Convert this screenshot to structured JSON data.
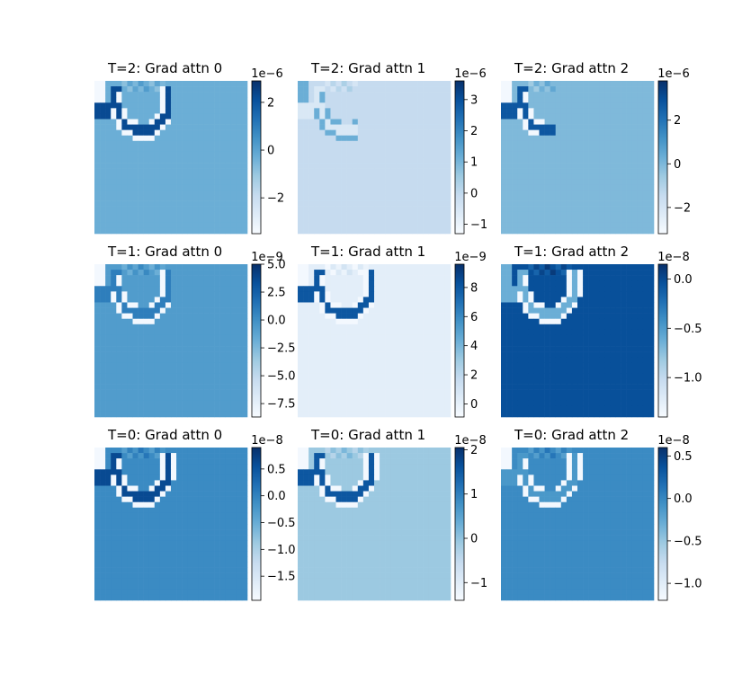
{
  "chart_data": [
    {
      "type": "heatmap",
      "title": "T=2: Grad attn 0",
      "colorbar": {
        "offset": "1e−6",
        "ticks": [
          2,
          0,
          -2
        ],
        "tick_labels": [
          "2",
          "0",
          "−2"
        ],
        "range": [
          -3.5,
          2.9
        ]
      },
      "background": 0.5,
      "arc_shade": 0.9,
      "arc_extent": 0.47
    },
    {
      "type": "heatmap",
      "title": "T=2: Grad attn 1",
      "colorbar": {
        "offset": "1e−6",
        "ticks": [
          3,
          2,
          1,
          0,
          -1
        ],
        "tick_labels": [
          "3",
          "2",
          "1",
          "0",
          "−1"
        ],
        "range": [
          -1.3,
          3.6
        ]
      },
      "background": 0.25,
      "arc_shade": 0.15,
      "arc_extent": 0.36
    },
    {
      "type": "heatmap",
      "title": "T=2: Grad attn 2",
      "colorbar": {
        "offset": "1e−6",
        "ticks": [
          2,
          0,
          -2
        ],
        "tick_labels": [
          "2",
          "0",
          "−2"
        ],
        "range": [
          -3.2,
          3.8
        ]
      },
      "background": 0.45,
      "arc_shade": 0.85,
      "arc_extent": 0.34
    },
    {
      "type": "heatmap",
      "title": "T=1: Grad attn 0",
      "colorbar": {
        "offset": "1e−9",
        "ticks": [
          5.0,
          2.5,
          0.0,
          -2.5,
          -5.0,
          -7.5
        ],
        "tick_labels": [
          "5.0",
          "2.5",
          "0.0",
          "−2.5",
          "−5.0",
          "−7.5"
        ],
        "range": [
          -8.7,
          5.0
        ]
      },
      "background": 0.58,
      "arc_shade": 0.7,
      "arc_extent": 0.47
    },
    {
      "type": "heatmap",
      "title": "T=1: Grad attn 1",
      "colorbar": {
        "offset": "1e−9",
        "ticks": [
          8,
          6,
          4,
          2,
          0
        ],
        "tick_labels": [
          "8",
          "6",
          "4",
          "2",
          "0"
        ],
        "range": [
          -0.9,
          9.6
        ]
      },
      "background": 0.1,
      "arc_shade": 0.85,
      "arc_extent": 0.47
    },
    {
      "type": "heatmap",
      "title": "T=1: Grad attn 2",
      "colorbar": {
        "offset": "1e−8",
        "ticks": [
          0.0,
          -0.5,
          -1.0
        ],
        "tick_labels": [
          "0.0",
          "−0.5",
          "−1.0"
        ],
        "range": [
          -1.4,
          0.15
        ]
      },
      "background": 0.88,
      "arc_shade": 0.5,
      "arc_extent": 0.54
    },
    {
      "type": "heatmap",
      "title": "T=0: Grad attn 0",
      "colorbar": {
        "offset": "1e−8",
        "ticks": [
          0.5,
          0.0,
          -0.5,
          -1.0,
          -1.5
        ],
        "tick_labels": [
          "0.5",
          "0.0",
          "−0.5",
          "−1.0",
          "−1.5"
        ],
        "range": [
          -1.95,
          0.9
        ]
      },
      "background": 0.65,
      "arc_shade": 0.9,
      "arc_extent": 0.57
    },
    {
      "type": "heatmap",
      "title": "T=0: Grad attn 1",
      "colorbar": {
        "offset": "1e−8",
        "ticks": [
          2,
          1,
          0,
          -1
        ],
        "tick_labels": [
          "2",
          "1",
          "0",
          "−1"
        ],
        "range": [
          -1.4,
          2.05
        ]
      },
      "background": 0.38,
      "arc_shade": 0.85,
      "arc_extent": 0.57
    },
    {
      "type": "heatmap",
      "title": "T=0: Grad attn 2",
      "colorbar": {
        "offset": "1e−8",
        "ticks": [
          0.5,
          0.0,
          -0.5,
          -1.0
        ],
        "tick_labels": [
          "0.5",
          "0.0",
          "−0.5",
          "−1.0"
        ],
        "range": [
          -1.2,
          0.6
        ]
      },
      "background": 0.65,
      "arc_shade": 0.6,
      "arc_extent": 0.57
    }
  ],
  "colormap": {
    "name": "Blues",
    "stops": [
      "#f7fbff",
      "#deebf7",
      "#c6dbef",
      "#9ecae1",
      "#6baed6",
      "#4292c6",
      "#2171b5",
      "#08519c",
      "#08306b"
    ]
  }
}
